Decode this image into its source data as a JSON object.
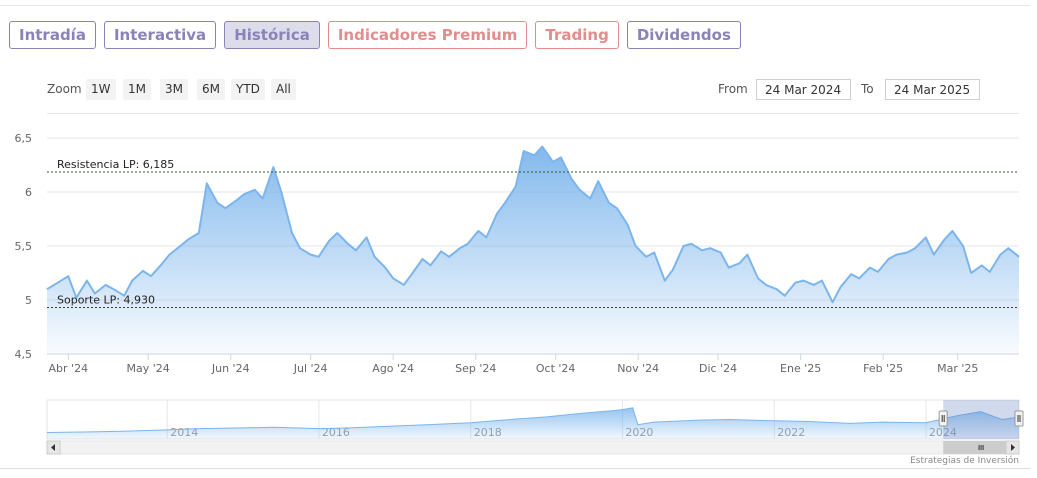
{
  "tabs": [
    {
      "label": "Intradía",
      "style": "purple",
      "active": false
    },
    {
      "label": "Interactiva",
      "style": "purple",
      "active": false
    },
    {
      "label": "Histórica",
      "style": "purple",
      "active": true
    },
    {
      "label": "Indicadores Premium",
      "style": "red",
      "active": false
    },
    {
      "label": "Trading",
      "style": "red",
      "active": false
    },
    {
      "label": "Dividendos",
      "style": "purple",
      "active": false
    }
  ],
  "zoom": {
    "label": "Zoom",
    "buttons": [
      "1W",
      "1M",
      "3M",
      "6M",
      "YTD",
      "All"
    ]
  },
  "range": {
    "from_label": "From",
    "from_value": "24 Mar 2024",
    "to_label": "To",
    "to_value": "24 Mar 2025"
  },
  "credits": "Estrategias de Inversión",
  "colors": {
    "line": "#7cb5ec",
    "resistance": "#2f5f2f",
    "support": "#8b2020",
    "tab_purple": "#8a82b8",
    "tab_red": "#e28c8c"
  },
  "chart_data": {
    "type": "area",
    "ylim": [
      4.5,
      6.5
    ],
    "y_ticks": [
      "4,5",
      "5",
      "5,5",
      "6",
      "6,5"
    ],
    "y_tick_values": [
      4.5,
      5,
      5.5,
      6,
      6.5
    ],
    "x_tick_labels": [
      "Abr '24",
      "May '24",
      "Jun '24",
      "Jul '24",
      "Ago '24",
      "Sep '24",
      "Oct '24",
      "Nov '24",
      "Dic '24",
      "Ene '25",
      "Feb '25",
      "Mar '25"
    ],
    "x_tick_dates": [
      "2024-04-01",
      "2024-05-01",
      "2024-06-01",
      "2024-07-01",
      "2024-08-01",
      "2024-09-01",
      "2024-10-01",
      "2024-11-01",
      "2024-12-01",
      "2025-01-01",
      "2025-02-01",
      "2025-03-01"
    ],
    "xlim": [
      "2024-03-24",
      "2025-03-24"
    ],
    "grid": true,
    "annotations": [
      {
        "label": "Resistencia LP: 6,185",
        "value": 6.185,
        "style": "dashed"
      },
      {
        "label": "Soporte LP: 4,930",
        "value": 4.93,
        "style": "dashed"
      }
    ],
    "series": [
      {
        "values": [
          [
            "2024-03-24",
            5.1
          ],
          [
            "2024-03-28",
            5.16
          ],
          [
            "2024-04-01",
            5.22
          ],
          [
            "2024-04-04",
            5.02
          ],
          [
            "2024-04-08",
            5.18
          ],
          [
            "2024-04-11",
            5.06
          ],
          [
            "2024-04-15",
            5.14
          ],
          [
            "2024-04-18",
            5.1
          ],
          [
            "2024-04-22",
            5.04
          ],
          [
            "2024-04-25",
            5.18
          ],
          [
            "2024-04-29",
            5.27
          ],
          [
            "2024-05-02",
            5.22
          ],
          [
            "2024-05-06",
            5.33
          ],
          [
            "2024-05-09",
            5.42
          ],
          [
            "2024-05-13",
            5.5
          ],
          [
            "2024-05-16",
            5.56
          ],
          [
            "2024-05-20",
            5.62
          ],
          [
            "2024-05-23",
            6.08
          ],
          [
            "2024-05-27",
            5.9
          ],
          [
            "2024-05-30",
            5.85
          ],
          [
            "2024-06-03",
            5.92
          ],
          [
            "2024-06-06",
            5.98
          ],
          [
            "2024-06-10",
            6.02
          ],
          [
            "2024-06-13",
            5.94
          ],
          [
            "2024-06-17",
            6.23
          ],
          [
            "2024-06-20",
            6.0
          ],
          [
            "2024-06-24",
            5.62
          ],
          [
            "2024-06-27",
            5.48
          ],
          [
            "2024-07-01",
            5.42
          ],
          [
            "2024-07-04",
            5.4
          ],
          [
            "2024-07-08",
            5.55
          ],
          [
            "2024-07-11",
            5.62
          ],
          [
            "2024-07-15",
            5.52
          ],
          [
            "2024-07-18",
            5.46
          ],
          [
            "2024-07-22",
            5.58
          ],
          [
            "2024-07-25",
            5.4
          ],
          [
            "2024-07-29",
            5.3
          ],
          [
            "2024-08-01",
            5.2
          ],
          [
            "2024-08-05",
            5.14
          ],
          [
            "2024-08-08",
            5.24
          ],
          [
            "2024-08-12",
            5.38
          ],
          [
            "2024-08-15",
            5.32
          ],
          [
            "2024-08-19",
            5.45
          ],
          [
            "2024-08-22",
            5.4
          ],
          [
            "2024-08-26",
            5.48
          ],
          [
            "2024-08-29",
            5.52
          ],
          [
            "2024-09-02",
            5.64
          ],
          [
            "2024-09-05",
            5.58
          ],
          [
            "2024-09-09",
            5.8
          ],
          [
            "2024-09-12",
            5.9
          ],
          [
            "2024-09-16",
            6.05
          ],
          [
            "2024-09-19",
            6.38
          ],
          [
            "2024-09-23",
            6.34
          ],
          [
            "2024-09-26",
            6.42
          ],
          [
            "2024-09-30",
            6.28
          ],
          [
            "2024-10-03",
            6.32
          ],
          [
            "2024-10-07",
            6.12
          ],
          [
            "2024-10-10",
            6.02
          ],
          [
            "2024-10-14",
            5.94
          ],
          [
            "2024-10-17",
            6.1
          ],
          [
            "2024-10-21",
            5.9
          ],
          [
            "2024-10-24",
            5.85
          ],
          [
            "2024-10-28",
            5.7
          ],
          [
            "2024-10-31",
            5.5
          ],
          [
            "2024-11-04",
            5.4
          ],
          [
            "2024-11-07",
            5.44
          ],
          [
            "2024-11-11",
            5.18
          ],
          [
            "2024-11-14",
            5.28
          ],
          [
            "2024-11-18",
            5.5
          ],
          [
            "2024-11-21",
            5.52
          ],
          [
            "2024-11-25",
            5.46
          ],
          [
            "2024-11-28",
            5.48
          ],
          [
            "2024-12-02",
            5.44
          ],
          [
            "2024-12-05",
            5.3
          ],
          [
            "2024-12-09",
            5.34
          ],
          [
            "2024-12-12",
            5.42
          ],
          [
            "2024-12-16",
            5.2
          ],
          [
            "2024-12-19",
            5.14
          ],
          [
            "2024-12-23",
            5.1
          ],
          [
            "2024-12-26",
            5.04
          ],
          [
            "2024-12-30",
            5.16
          ],
          [
            "2025-01-02",
            5.18
          ],
          [
            "2025-01-06",
            5.14
          ],
          [
            "2025-01-09",
            5.18
          ],
          [
            "2025-01-13",
            4.98
          ],
          [
            "2025-01-16",
            5.12
          ],
          [
            "2025-01-20",
            5.24
          ],
          [
            "2025-01-23",
            5.2
          ],
          [
            "2025-01-27",
            5.3
          ],
          [
            "2025-01-30",
            5.26
          ],
          [
            "2025-02-03",
            5.38
          ],
          [
            "2025-02-06",
            5.42
          ],
          [
            "2025-02-10",
            5.44
          ],
          [
            "2025-02-13",
            5.48
          ],
          [
            "2025-02-17",
            5.58
          ],
          [
            "2025-02-20",
            5.42
          ],
          [
            "2025-02-24",
            5.56
          ],
          [
            "2025-02-27",
            5.64
          ],
          [
            "2025-03-03",
            5.5
          ],
          [
            "2025-03-06",
            5.25
          ],
          [
            "2025-03-10",
            5.32
          ],
          [
            "2025-03-13",
            5.26
          ],
          [
            "2025-03-17",
            5.42
          ],
          [
            "2025-03-20",
            5.48
          ],
          [
            "2025-03-24",
            5.4
          ]
        ]
      }
    ],
    "navigator": {
      "x_tick_labels": [
        "2014",
        "2016",
        "2018",
        "2020",
        "2022",
        "2024"
      ],
      "values": [
        [
          "2012-06-01",
          3.0
        ],
        [
          "2013-01-01",
          3.1
        ],
        [
          "2013-06-01",
          3.2
        ],
        [
          "2014-01-01",
          3.4
        ],
        [
          "2014-06-01",
          3.6
        ],
        [
          "2015-01-01",
          3.7
        ],
        [
          "2015-06-01",
          3.8
        ],
        [
          "2016-01-01",
          3.6
        ],
        [
          "2016-06-01",
          3.7
        ],
        [
          "2017-01-01",
          4.0
        ],
        [
          "2017-06-01",
          4.2
        ],
        [
          "2018-01-01",
          4.5
        ],
        [
          "2018-06-01",
          4.9
        ],
        [
          "2019-01-01",
          5.4
        ],
        [
          "2019-06-01",
          5.9
        ],
        [
          "2019-12-01",
          6.4
        ],
        [
          "2020-01-15",
          6.6
        ],
        [
          "2020-02-20",
          6.8
        ],
        [
          "2020-03-15",
          4.2
        ],
        [
          "2020-06-01",
          4.6
        ],
        [
          "2021-01-01",
          4.9
        ],
        [
          "2021-06-01",
          5.0
        ],
        [
          "2022-01-01",
          4.8
        ],
        [
          "2022-06-01",
          4.7
        ],
        [
          "2023-01-01",
          4.4
        ],
        [
          "2023-06-01",
          4.6
        ],
        [
          "2024-01-01",
          4.5
        ],
        [
          "2024-06-01",
          5.6
        ],
        [
          "2024-09-20",
          6.2
        ],
        [
          "2025-01-01",
          5.0
        ],
        [
          "2025-03-24",
          5.4
        ]
      ]
    }
  }
}
